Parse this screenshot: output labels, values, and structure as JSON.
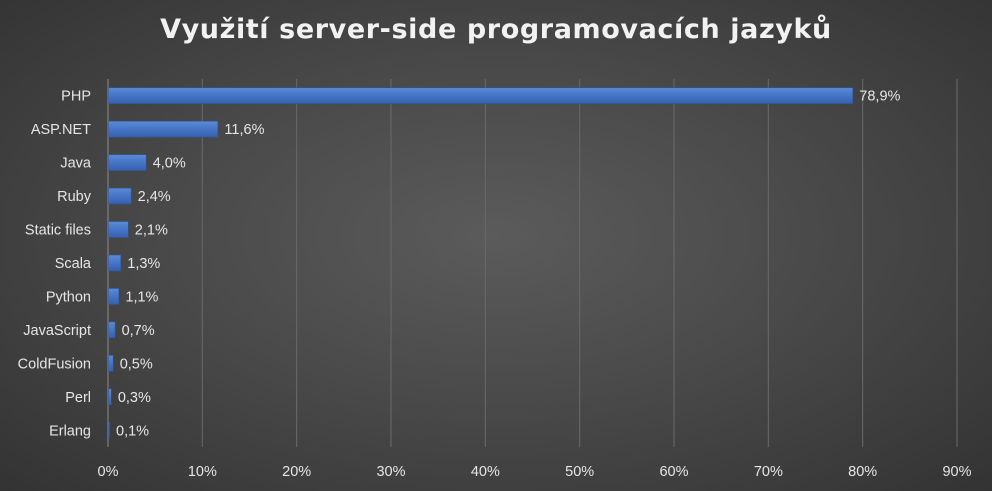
{
  "chart_data": {
    "type": "bar",
    "orientation": "horizontal",
    "title": "Využití server-side programovacích jazyků",
    "categories": [
      "PHP",
      "ASP.NET",
      "Java",
      "Ruby",
      "Static files",
      "Scala",
      "Python",
      "JavaScript",
      "ColdFusion",
      "Perl",
      "Erlang"
    ],
    "values": [
      78.9,
      11.6,
      4.0,
      2.4,
      2.1,
      1.3,
      1.1,
      0.7,
      0.5,
      0.3,
      0.1
    ],
    "data_labels": [
      "78,9%",
      "11,6%",
      "4,0%",
      "2,4%",
      "2,1%",
      "1,3%",
      "1,1%",
      "0,7%",
      "0,5%",
      "0,3%",
      "0,1%"
    ],
    "x_ticks": [
      0,
      10,
      20,
      30,
      40,
      50,
      60,
      70,
      80,
      90
    ],
    "x_tick_labels": [
      "0%",
      "10%",
      "20%",
      "30%",
      "40%",
      "50%",
      "60%",
      "70%",
      "80%",
      "90%"
    ],
    "xlim": [
      0,
      90
    ],
    "xlabel": "",
    "ylabel": "",
    "grid": "vertical",
    "legend": "none",
    "bar_color": "#4472C4",
    "background_color": "#404040"
  }
}
